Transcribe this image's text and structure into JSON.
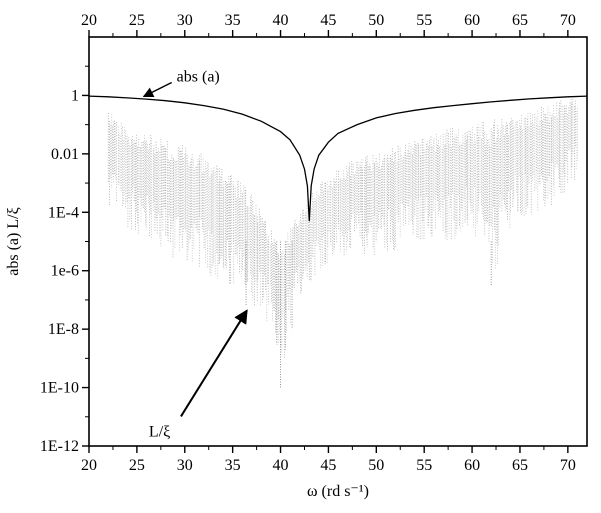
{
  "chart_data": {
    "type": "line",
    "xlabel": "ω (rd s⁻¹)",
    "ylabel": "abs (a) L/ξ",
    "xlim": [
      20,
      72
    ],
    "ylim_log10": [
      -12,
      2
    ],
    "y_scale": "log",
    "grid": false,
    "legend": "none",
    "x_ticks": [
      20,
      25,
      30,
      35,
      40,
      45,
      50,
      55,
      60,
      65,
      70
    ],
    "x_tick_labels": [
      "20",
      "25",
      "30",
      "35",
      "40",
      "45",
      "50",
      "55",
      "60",
      "65",
      "70"
    ],
    "top_x_ticks": [
      20,
      25,
      30,
      35,
      40,
      45,
      50,
      55,
      60,
      65,
      70
    ],
    "top_x_tick_labels": [
      "20",
      "25",
      "30",
      "35",
      "40",
      "45",
      "50",
      "55",
      "60",
      "65",
      "70"
    ],
    "y_ticks": [
      1,
      0.01,
      0.0001,
      1e-06,
      1e-08,
      1e-10,
      1e-12
    ],
    "y_tick_labels": [
      "1",
      "0.01",
      "1E-4",
      "1e-6",
      "1E-8",
      "1E-10",
      "1E-12"
    ],
    "annotations": [
      {
        "text": "abs (a)",
        "points_to": [
          25.5,
          0.85
        ]
      },
      {
        "text": "L/ξ",
        "points_to": [
          36.7,
          6e-08
        ]
      }
    ],
    "series": [
      {
        "key": "abs_a",
        "style": "solid-black",
        "points": [
          [
            20,
            0.95
          ],
          [
            22,
            0.9
          ],
          [
            24,
            0.82
          ],
          [
            26,
            0.75
          ],
          [
            28,
            0.66
          ],
          [
            30,
            0.56
          ],
          [
            32,
            0.45
          ],
          [
            34,
            0.34
          ],
          [
            36,
            0.23
          ],
          [
            38,
            0.13
          ],
          [
            40,
            0.058
          ],
          [
            41,
            0.03
          ],
          [
            42,
            0.009
          ],
          [
            42.5,
            0.003
          ],
          [
            42.8,
            0.0008
          ],
          [
            43.0,
            5e-05
          ],
          [
            43.2,
            0.0008
          ],
          [
            43.5,
            0.003
          ],
          [
            44,
            0.009
          ],
          [
            45,
            0.025
          ],
          [
            46,
            0.05
          ],
          [
            48,
            0.1
          ],
          [
            50,
            0.17
          ],
          [
            52,
            0.24
          ],
          [
            54,
            0.31
          ],
          [
            56,
            0.38
          ],
          [
            58,
            0.45
          ],
          [
            60,
            0.52
          ],
          [
            62,
            0.6
          ],
          [
            64,
            0.68
          ],
          [
            66,
            0.76
          ],
          [
            68,
            0.83
          ],
          [
            70,
            0.9
          ],
          [
            72,
            0.95
          ]
        ]
      },
      {
        "key": "L_over_xi",
        "style": "gray-dotted-spikes",
        "envelope": [
          {
            "x": 22,
            "top": 0.4,
            "bottom": 0.0001
          },
          {
            "x": 24,
            "top": 0.08,
            "bottom": 3e-05
          },
          {
            "x": 26,
            "top": 0.05,
            "bottom": 1e-05
          },
          {
            "x": 28,
            "top": 0.03,
            "bottom": 3e-06
          },
          {
            "x": 30,
            "top": 0.02,
            "bottom": 2e-06
          },
          {
            "x": 32,
            "top": 0.01,
            "bottom": 1e-06
          },
          {
            "x": 34,
            "top": 0.003,
            "bottom": 3e-07
          },
          {
            "x": 36,
            "top": 0.001,
            "bottom": 1e-07
          },
          {
            "x": 37,
            "top": 0.0004,
            "bottom": 5e-08
          },
          {
            "x": 38,
            "top": 0.0001,
            "bottom": 3e-08
          },
          {
            "x": 39,
            "top": 3e-05,
            "bottom": 1e-08
          },
          {
            "x": 40,
            "top": 1e-05,
            "bottom": 1e-10
          },
          {
            "x": 41,
            "top": 3e-05,
            "bottom": 1e-08
          },
          {
            "x": 42,
            "top": 0.0001,
            "bottom": 1e-07
          },
          {
            "x": 44,
            "top": 0.001,
            "bottom": 1e-06
          },
          {
            "x": 46,
            "top": 0.003,
            "bottom": 2e-06
          },
          {
            "x": 48,
            "top": 0.008,
            "bottom": 3e-06
          },
          {
            "x": 50,
            "top": 0.01,
            "bottom": 3e-06
          },
          {
            "x": 52,
            "top": 0.02,
            "bottom": 5e-06
          },
          {
            "x": 54,
            "top": 0.03,
            "bottom": 1e-05
          },
          {
            "x": 56,
            "top": 0.05,
            "bottom": 1e-05
          },
          {
            "x": 58,
            "top": 0.08,
            "bottom": 1e-05
          },
          {
            "x": 60,
            "top": 0.1,
            "bottom": 2e-05
          },
          {
            "x": 62,
            "top": 0.15,
            "bottom": 3e-07
          },
          {
            "x": 64,
            "top": 0.2,
            "bottom": 3e-05
          },
          {
            "x": 66,
            "top": 0.3,
            "bottom": 5e-05
          },
          {
            "x": 68,
            "top": 0.5,
            "bottom": 0.0001
          },
          {
            "x": 70,
            "top": 0.8,
            "bottom": 0.0005
          },
          {
            "x": 71,
            "top": 1.0,
            "bottom": 0.001
          }
        ]
      }
    ]
  }
}
